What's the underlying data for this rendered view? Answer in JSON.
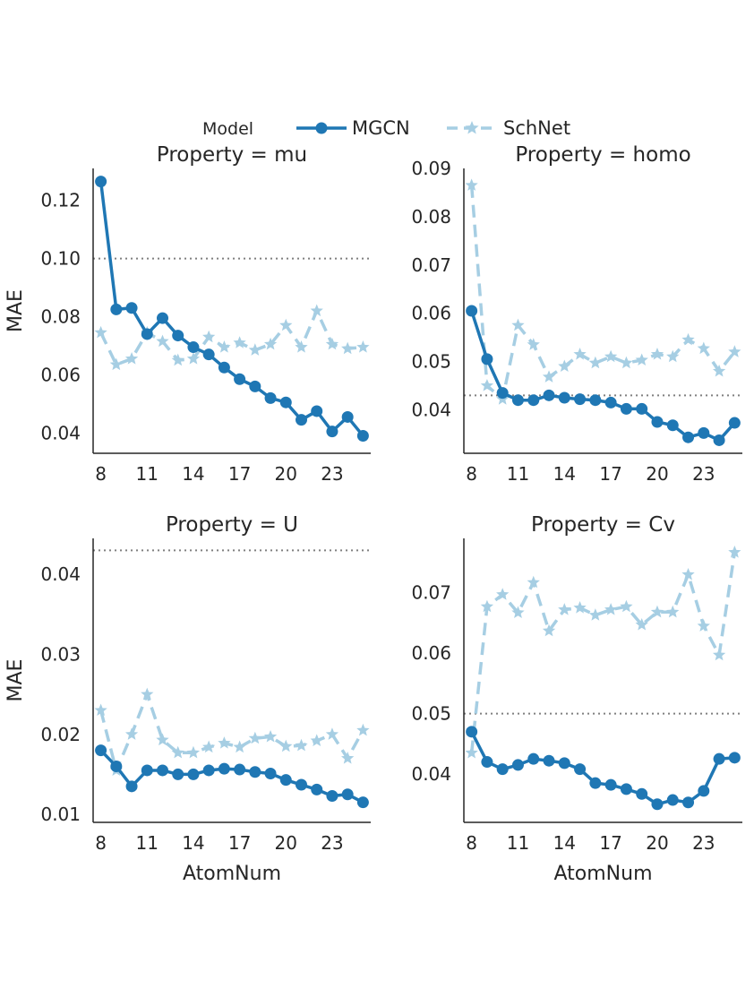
{
  "legend": {
    "title": "Model",
    "entries": [
      {
        "name": "MGCN",
        "color": "#1f77b4",
        "style": "solid",
        "marker": "circle"
      },
      {
        "name": "SchNet",
        "color": "#a6cee3",
        "style": "dashed",
        "marker": "star"
      }
    ]
  },
  "chart_data": [
    {
      "type": "line",
      "title": "Property = mu",
      "xlabel": "",
      "ylabel": "MAE",
      "xlim": [
        7.5,
        25.5
      ],
      "ylim": [
        0.033,
        0.131
      ],
      "xticks": [
        8,
        11,
        14,
        17,
        20,
        23
      ],
      "xtick_labels": [
        "8",
        "11",
        "14",
        "17",
        "20",
        "23"
      ],
      "yticks": [
        0.04,
        0.06,
        0.08,
        0.1,
        0.12
      ],
      "ytick_labels": [
        "0.04",
        "0.06",
        "0.08",
        "0.10",
        "0.12"
      ],
      "reference_line": 0.1,
      "x": [
        8,
        9,
        10,
        11,
        12,
        13,
        14,
        15,
        16,
        17,
        18,
        19,
        20,
        21,
        22,
        23,
        24,
        25
      ],
      "series": [
        {
          "name": "MGCN",
          "values": [
            0.1265,
            0.0825,
            0.083,
            0.074,
            0.0795,
            0.0735,
            0.0695,
            0.067,
            0.0625,
            0.0585,
            0.056,
            0.052,
            0.0505,
            0.0445,
            0.0475,
            0.0405,
            0.0455,
            0.039
          ]
        },
        {
          "name": "SchNet",
          "values": [
            0.0745,
            0.0635,
            0.0655,
            0.0745,
            0.0715,
            0.065,
            0.0655,
            0.073,
            0.0695,
            0.071,
            0.0685,
            0.0705,
            0.077,
            0.0695,
            0.082,
            0.0705,
            0.069,
            0.0695
          ]
        }
      ]
    },
    {
      "type": "line",
      "title": "Property = homo",
      "xlabel": "",
      "ylabel": "",
      "xlim": [
        7.5,
        25.5
      ],
      "ylim": [
        0.031,
        0.09
      ],
      "xticks": [
        8,
        11,
        14,
        17,
        20,
        23
      ],
      "xtick_labels": [
        "8",
        "11",
        "14",
        "17",
        "20",
        "23"
      ],
      "yticks": [
        0.04,
        0.05,
        0.06,
        0.07,
        0.08,
        0.09
      ],
      "ytick_labels": [
        "0.04",
        "0.05",
        "0.06",
        "0.07",
        "0.08",
        "0.09"
      ],
      "reference_line": 0.043,
      "x": [
        8,
        9,
        10,
        11,
        12,
        13,
        14,
        15,
        16,
        17,
        18,
        19,
        20,
        21,
        22,
        23,
        24,
        25
      ],
      "series": [
        {
          "name": "MGCN",
          "values": [
            0.0605,
            0.0505,
            0.0435,
            0.042,
            0.042,
            0.043,
            0.0425,
            0.0422,
            0.042,
            0.0415,
            0.0402,
            0.0402,
            0.0375,
            0.0368,
            0.0343,
            0.0352,
            0.0337,
            0.0373
          ]
        },
        {
          "name": "SchNet",
          "values": [
            0.0865,
            0.045,
            0.0422,
            0.0575,
            0.0535,
            0.0468,
            0.049,
            0.0515,
            0.0497,
            0.051,
            0.0497,
            0.0503,
            0.0515,
            0.051,
            0.0545,
            0.0527,
            0.048,
            0.052
          ]
        }
      ]
    },
    {
      "type": "line",
      "title": "Property = U",
      "xlabel": "AtomNum",
      "ylabel": "MAE",
      "xlim": [
        7.5,
        25.5
      ],
      "ylim": [
        0.009,
        0.0445
      ],
      "xticks": [
        8,
        11,
        14,
        17,
        20,
        23
      ],
      "xtick_labels": [
        "8",
        "11",
        "14",
        "17",
        "20",
        "23"
      ],
      "yticks": [
        0.01,
        0.02,
        0.03,
        0.04
      ],
      "ytick_labels": [
        "0.01",
        "0.02",
        "0.03",
        "0.04"
      ],
      "reference_line": 0.043,
      "x": [
        8,
        9,
        10,
        11,
        12,
        13,
        14,
        15,
        16,
        17,
        18,
        19,
        20,
        21,
        22,
        23,
        24,
        25
      ],
      "series": [
        {
          "name": "MGCN",
          "values": [
            0.018,
            0.016,
            0.0135,
            0.0155,
            0.0155,
            0.015,
            0.015,
            0.0155,
            0.0157,
            0.0156,
            0.0153,
            0.0151,
            0.0143,
            0.0137,
            0.0131,
            0.0123,
            0.0125,
            0.0115
          ]
        },
        {
          "name": "SchNet",
          "values": [
            0.023,
            0.0155,
            0.02,
            0.025,
            0.0193,
            0.0177,
            0.0177,
            0.0184,
            0.0189,
            0.0184,
            0.0195,
            0.0197,
            0.0185,
            0.0186,
            0.0192,
            0.02,
            0.017,
            0.0205
          ]
        }
      ]
    },
    {
      "type": "line",
      "title": "Property = Cv",
      "xlabel": "AtomNum",
      "ylabel": "",
      "xlim": [
        7.5,
        25.5
      ],
      "ylim": [
        0.032,
        0.079
      ],
      "xticks": [
        8,
        11,
        14,
        17,
        20,
        23
      ],
      "xtick_labels": [
        "8",
        "11",
        "14",
        "17",
        "20",
        "23"
      ],
      "yticks": [
        0.04,
        0.05,
        0.06,
        0.07
      ],
      "ytick_labels": [
        "0.04",
        "0.05",
        "0.06",
        "0.07"
      ],
      "reference_line": 0.05,
      "x": [
        8,
        9,
        10,
        11,
        12,
        13,
        14,
        15,
        16,
        17,
        18,
        19,
        20,
        21,
        22,
        23,
        24,
        25
      ],
      "series": [
        {
          "name": "MGCN",
          "values": [
            0.047,
            0.042,
            0.0408,
            0.0415,
            0.0425,
            0.0422,
            0.0418,
            0.0408,
            0.0385,
            0.0382,
            0.0375,
            0.0367,
            0.035,
            0.0357,
            0.0353,
            0.0372,
            0.0425,
            0.0427
          ]
        },
        {
          "name": "SchNet",
          "values": [
            0.0435,
            0.0677,
            0.0697,
            0.0667,
            0.0717,
            0.0637,
            0.0672,
            0.0675,
            0.0663,
            0.0672,
            0.0677,
            0.0647,
            0.0668,
            0.0668,
            0.073,
            0.0645,
            0.0597,
            0.0767
          ]
        }
      ]
    }
  ]
}
